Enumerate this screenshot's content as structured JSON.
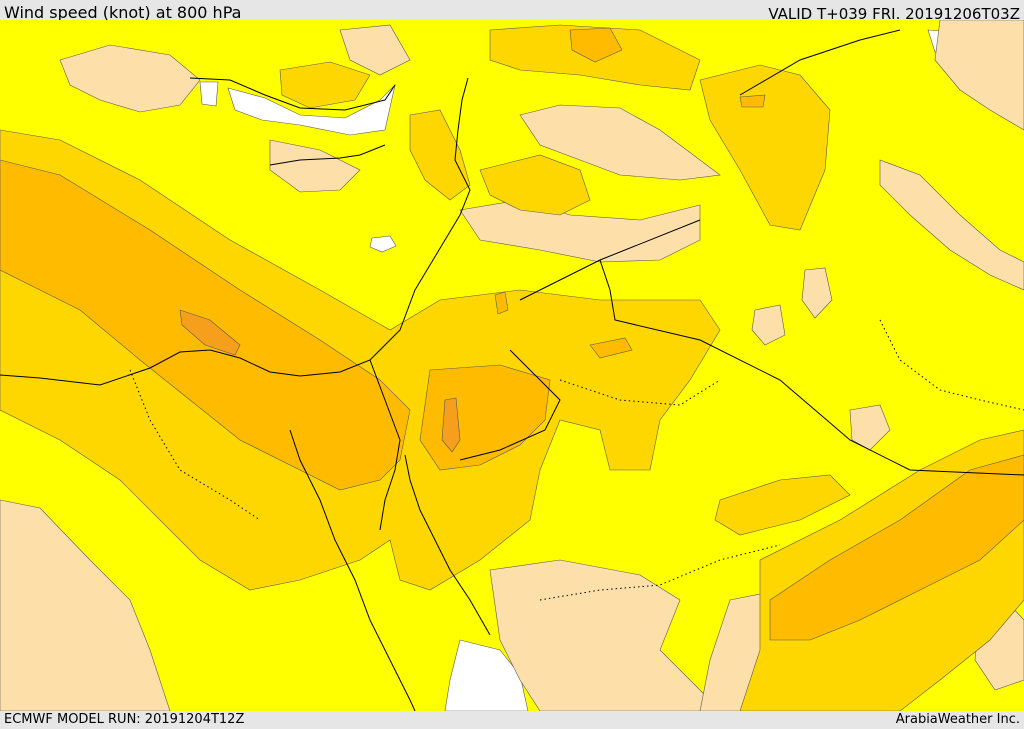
{
  "header": {
    "title": "Wind speed (knot) at 800 hPa",
    "valid": "VALID T+039 FRI. 20191206T03Z"
  },
  "footer": {
    "model_run": "ECMWF MODEL RUN: 20191204T12Z",
    "credit": "ArabiaWeather Inc."
  },
  "map": {
    "shading_colors": {
      "sea_white": "#ffffff",
      "band_tan": "#fddfa9",
      "band_yellow": "#ffff00",
      "band_gold": "#ffd700",
      "band_amber": "#ffbb00",
      "band_orange": "#f59f1c"
    },
    "line_colors": {
      "coast": "#000000",
      "contour": "#5a5a5a"
    }
  }
}
